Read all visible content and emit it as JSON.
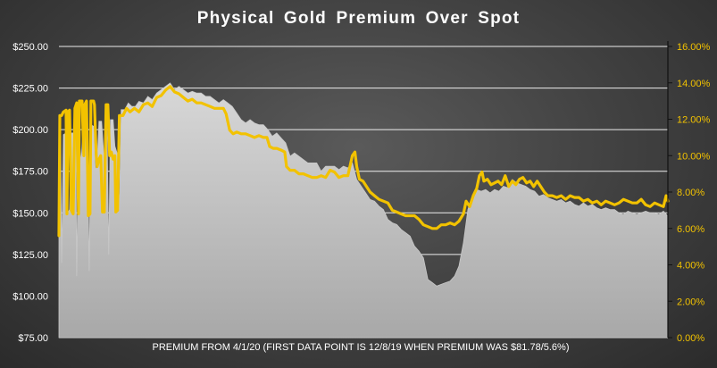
{
  "chart_data": {
    "type": "area",
    "title": "Physical  Gold  Premium  Over  Spot",
    "xlabel": "PREMIUM  FROM 4/1/20 (FIRST DATA POINT IS 12/8/19 WHEN PREMIUM WAS $81.78/5.6%)",
    "ylabel": "",
    "ylabel_right": "",
    "ylim": [
      75,
      250
    ],
    "ylim_right": [
      0,
      16
    ],
    "left_ticks": [
      "$75.00",
      "$100.00",
      "$125.00",
      "$150.00",
      "$175.00",
      "$200.00",
      "$225.00",
      "$250.00"
    ],
    "right_ticks": [
      "0.00%",
      "2.00%",
      "4.00%",
      "6.00%",
      "8.00%",
      "10.00%",
      "12.00%",
      "14.00%",
      "16.00%"
    ],
    "grid": true,
    "series": [
      {
        "axis": "left",
        "color": "#c0c0c0",
        "points": [
          [
            0,
            195
          ],
          [
            2,
            196
          ],
          [
            3,
            120
          ],
          [
            5,
            197
          ],
          [
            8,
            198
          ],
          [
            10,
            150
          ],
          [
            12,
            152
          ],
          [
            14,
            198
          ],
          [
            17,
            198
          ],
          [
            19,
            200
          ],
          [
            20,
            112
          ],
          [
            22,
            201
          ],
          [
            25,
            180
          ],
          [
            27,
            200
          ],
          [
            30,
            205
          ],
          [
            32,
            200
          ],
          [
            34,
            115
          ],
          [
            36,
            203
          ],
          [
            39,
            202
          ],
          [
            41,
            175
          ],
          [
            43,
            180
          ],
          [
            45,
            205
          ],
          [
            48,
            205
          ],
          [
            51,
            180
          ],
          [
            54,
            205
          ],
          [
            56,
            125
          ],
          [
            58,
            206
          ],
          [
            61,
            206
          ],
          [
            63,
            190
          ],
          [
            66,
            185
          ],
          [
            68,
            152
          ],
          [
            70,
            212
          ],
          [
            74,
            212
          ],
          [
            78,
            216
          ],
          [
            82,
            214
          ],
          [
            86,
            214
          ],
          [
            90,
            217
          ],
          [
            95,
            216
          ],
          [
            100,
            220
          ],
          [
            105,
            218
          ],
          [
            110,
            222
          ],
          [
            115,
            224
          ],
          [
            120,
            226
          ],
          [
            125,
            228
          ],
          [
            130,
            224
          ],
          [
            135,
            226
          ],
          [
            140,
            224
          ],
          [
            145,
            222
          ],
          [
            150,
            223
          ],
          [
            155,
            222
          ],
          [
            160,
            222
          ],
          [
            165,
            220
          ],
          [
            170,
            220
          ],
          [
            175,
            218
          ],
          [
            180,
            216
          ],
          [
            185,
            218
          ],
          [
            190,
            216
          ],
          [
            195,
            214
          ],
          [
            200,
            210
          ],
          [
            205,
            206
          ],
          [
            210,
            204
          ],
          [
            215,
            206
          ],
          [
            220,
            204
          ],
          [
            225,
            203
          ],
          [
            230,
            203
          ],
          [
            235,
            200
          ],
          [
            240,
            196
          ],
          [
            245,
            198
          ],
          [
            250,
            195
          ],
          [
            255,
            192
          ],
          [
            260,
            184
          ],
          [
            265,
            186
          ],
          [
            270,
            184
          ],
          [
            275,
            182
          ],
          [
            280,
            180
          ],
          [
            285,
            180
          ],
          [
            290,
            180
          ],
          [
            295,
            175
          ],
          [
            300,
            178
          ],
          [
            305,
            178
          ],
          [
            310,
            178
          ],
          [
            315,
            176
          ],
          [
            320,
            178
          ],
          [
            325,
            177
          ],
          [
            330,
            180
          ],
          [
            335,
            170
          ],
          [
            340,
            166
          ],
          [
            345,
            162
          ],
          [
            350,
            158
          ],
          [
            355,
            157
          ],
          [
            360,
            154
          ],
          [
            365,
            152
          ],
          [
            370,
            146
          ],
          [
            375,
            144
          ],
          [
            380,
            143
          ],
          [
            385,
            140
          ],
          [
            390,
            138
          ],
          [
            395,
            136
          ],
          [
            400,
            130
          ],
          [
            405,
            127
          ],
          [
            410,
            123
          ],
          [
            415,
            110
          ],
          [
            420,
            108
          ],
          [
            425,
            106
          ],
          [
            430,
            107
          ],
          [
            435,
            108
          ],
          [
            440,
            109
          ],
          [
            445,
            112
          ],
          [
            450,
            118
          ],
          [
            455,
            132
          ],
          [
            460,
            152
          ],
          [
            465,
            160
          ],
          [
            470,
            164
          ],
          [
            475,
            163
          ],
          [
            480,
            164
          ],
          [
            485,
            162
          ],
          [
            490,
            164
          ],
          [
            495,
            163
          ],
          [
            500,
            166
          ],
          [
            505,
            165
          ],
          [
            510,
            170
          ],
          [
            515,
            168
          ],
          [
            520,
            167
          ],
          [
            525,
            166
          ],
          [
            530,
            164
          ],
          [
            535,
            163
          ],
          [
            540,
            160
          ],
          [
            545,
            161
          ],
          [
            550,
            159
          ],
          [
            555,
            158
          ],
          [
            560,
            157
          ],
          [
            565,
            158
          ],
          [
            570,
            156
          ],
          [
            575,
            157
          ],
          [
            580,
            155
          ],
          [
            585,
            154
          ],
          [
            590,
            156
          ],
          [
            595,
            154
          ],
          [
            600,
            155
          ],
          [
            605,
            153
          ],
          [
            610,
            152
          ],
          [
            615,
            153
          ],
          [
            620,
            152
          ],
          [
            625,
            152
          ],
          [
            630,
            150
          ],
          [
            635,
            149
          ],
          [
            640,
            151
          ],
          [
            645,
            150
          ],
          [
            650,
            149
          ],
          [
            655,
            150
          ],
          [
            660,
            151
          ],
          [
            665,
            150
          ],
          [
            670,
            150
          ],
          [
            675,
            149
          ],
          [
            680,
            151
          ],
          [
            685,
            148
          ]
        ]
      },
      {
        "axis": "right",
        "color": "#f2c200",
        "points": [
          [
            0,
            5.6
          ],
          [
            1,
            12.2
          ],
          [
            3,
            12.2
          ],
          [
            5,
            12.4
          ],
          [
            8,
            12.5
          ],
          [
            9,
            6.8
          ],
          [
            10,
            12.4
          ],
          [
            12,
            12.5
          ],
          [
            14,
            7.0
          ],
          [
            16,
            6.8
          ],
          [
            18,
            12.6
          ],
          [
            20,
            12.9
          ],
          [
            22,
            6.8
          ],
          [
            23,
            13.0
          ],
          [
            26,
            13.0
          ],
          [
            28,
            10.0
          ],
          [
            29,
            12.8
          ],
          [
            31,
            13.0
          ],
          [
            33,
            6.7
          ],
          [
            35,
            6.8
          ],
          [
            36,
            13.0
          ],
          [
            39,
            13.0
          ],
          [
            40,
            12.8
          ],
          [
            42,
            10.0
          ],
          [
            43,
            9.4
          ],
          [
            45,
            9.8
          ],
          [
            47,
            10.0
          ],
          [
            49,
            6.9
          ],
          [
            51,
            6.9
          ],
          [
            53,
            12.8
          ],
          [
            55,
            12.8
          ],
          [
            57,
            10.0
          ],
          [
            59,
            10.2
          ],
          [
            61,
            9.8
          ],
          [
            63,
            10.0
          ],
          [
            64,
            6.9
          ],
          [
            66,
            7.0
          ],
          [
            68,
            12.2
          ],
          [
            72,
            12.2
          ],
          [
            76,
            12.6
          ],
          [
            80,
            12.4
          ],
          [
            85,
            12.6
          ],
          [
            90,
            12.4
          ],
          [
            95,
            12.8
          ],
          [
            100,
            12.9
          ],
          [
            105,
            12.7
          ],
          [
            110,
            13.2
          ],
          [
            115,
            13.3
          ],
          [
            120,
            13.6
          ],
          [
            125,
            13.8
          ],
          [
            130,
            13.5
          ],
          [
            135,
            13.4
          ],
          [
            140,
            13.2
          ],
          [
            145,
            13.0
          ],
          [
            150,
            13.1
          ],
          [
            155,
            12.9
          ],
          [
            160,
            12.9
          ],
          [
            165,
            12.8
          ],
          [
            170,
            12.7
          ],
          [
            175,
            12.6
          ],
          [
            180,
            12.6
          ],
          [
            185,
            12.6
          ],
          [
            188,
            12.3
          ],
          [
            192,
            11.4
          ],
          [
            196,
            11.2
          ],
          [
            200,
            11.3
          ],
          [
            205,
            11.2
          ],
          [
            210,
            11.2
          ],
          [
            215,
            11.1
          ],
          [
            220,
            11.0
          ],
          [
            225,
            11.1
          ],
          [
            230,
            11.0
          ],
          [
            234,
            11.0
          ],
          [
            237,
            10.5
          ],
          [
            241,
            10.4
          ],
          [
            245,
            10.4
          ],
          [
            250,
            10.3
          ],
          [
            254,
            10.2
          ],
          [
            256,
            9.4
          ],
          [
            260,
            9.2
          ],
          [
            265,
            9.2
          ],
          [
            270,
            9.0
          ],
          [
            275,
            9.0
          ],
          [
            280,
            8.9
          ],
          [
            285,
            8.8
          ],
          [
            290,
            8.8
          ],
          [
            295,
            8.9
          ],
          [
            300,
            8.8
          ],
          [
            305,
            9.2
          ],
          [
            310,
            9.1
          ],
          [
            315,
            8.8
          ],
          [
            320,
            8.9
          ],
          [
            325,
            8.9
          ],
          [
            330,
            10.0
          ],
          [
            333,
            10.2
          ],
          [
            335,
            9.4
          ],
          [
            338,
            8.7
          ],
          [
            342,
            8.6
          ],
          [
            346,
            8.3
          ],
          [
            350,
            8.0
          ],
          [
            355,
            7.8
          ],
          [
            360,
            7.6
          ],
          [
            365,
            7.5
          ],
          [
            370,
            7.4
          ],
          [
            375,
            7.0
          ],
          [
            380,
            6.9
          ],
          [
            385,
            6.8
          ],
          [
            390,
            6.7
          ],
          [
            395,
            6.7
          ],
          [
            400,
            6.7
          ],
          [
            405,
            6.5
          ],
          [
            410,
            6.2
          ],
          [
            415,
            6.1
          ],
          [
            420,
            6.0
          ],
          [
            425,
            6.0
          ],
          [
            430,
            6.2
          ],
          [
            435,
            6.2
          ],
          [
            440,
            6.3
          ],
          [
            445,
            6.2
          ],
          [
            450,
            6.4
          ],
          [
            455,
            6.8
          ],
          [
            458,
            7.5
          ],
          [
            462,
            7.2
          ],
          [
            466,
            7.8
          ],
          [
            470,
            8.2
          ],
          [
            473,
            8.9
          ],
          [
            476,
            9.1
          ],
          [
            478,
            8.6
          ],
          [
            482,
            8.7
          ],
          [
            486,
            8.4
          ],
          [
            490,
            8.5
          ],
          [
            494,
            8.6
          ],
          [
            498,
            8.4
          ],
          [
            502,
            8.9
          ],
          [
            506,
            8.3
          ],
          [
            510,
            8.6
          ],
          [
            514,
            8.4
          ],
          [
            518,
            8.7
          ],
          [
            522,
            8.8
          ],
          [
            526,
            8.5
          ],
          [
            530,
            8.6
          ],
          [
            534,
            8.3
          ],
          [
            538,
            8.6
          ],
          [
            542,
            8.3
          ],
          [
            546,
            8.0
          ],
          [
            550,
            7.8
          ],
          [
            555,
            7.8
          ],
          [
            560,
            7.7
          ],
          [
            565,
            7.8
          ],
          [
            570,
            7.6
          ],
          [
            575,
            7.8
          ],
          [
            580,
            7.7
          ],
          [
            585,
            7.7
          ],
          [
            590,
            7.5
          ],
          [
            595,
            7.6
          ],
          [
            600,
            7.4
          ],
          [
            605,
            7.5
          ],
          [
            610,
            7.3
          ],
          [
            615,
            7.5
          ],
          [
            620,
            7.4
          ],
          [
            625,
            7.3
          ],
          [
            630,
            7.4
          ],
          [
            635,
            7.6
          ],
          [
            640,
            7.5
          ],
          [
            645,
            7.4
          ],
          [
            650,
            7.4
          ],
          [
            655,
            7.6
          ],
          [
            660,
            7.3
          ],
          [
            665,
            7.2
          ],
          [
            670,
            7.4
          ],
          [
            675,
            7.3
          ],
          [
            680,
            7.2
          ],
          [
            683,
            7.8
          ],
          [
            685,
            7.5
          ]
        ]
      }
    ]
  }
}
